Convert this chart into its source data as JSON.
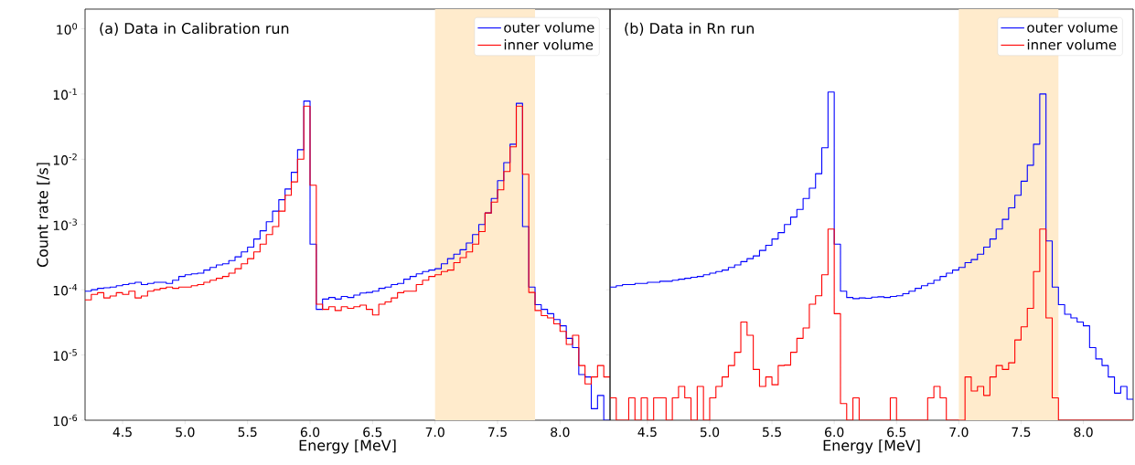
{
  "chart_data": [
    {
      "type": "histogram",
      "xlabel": "Energy [MeV]",
      "ylabel": "Count rate [/s]",
      "annotations": [
        "(a) Data in Calibration run"
      ],
      "log": true,
      "legend": "top right",
      "xlim": [
        4.2,
        8.4
      ],
      "ylim": [
        1e-06,
        2
      ],
      "xticks": [
        {
          "value": 4.5,
          "label": "4.5"
        },
        {
          "value": 5,
          "label": "5.0"
        },
        {
          "value": 5.5,
          "label": "5.5"
        },
        {
          "value": 6,
          "label": "6.0"
        },
        {
          "value": 6.5,
          "label": "6.5"
        },
        {
          "value": 7,
          "label": "7.0"
        },
        {
          "value": 7.5,
          "label": "7.5"
        },
        {
          "value": 8,
          "label": "8.0"
        }
      ],
      "yticks": [
        {
          "value": 1e-06,
          "label": "10$^{-6}$"
        },
        {
          "value": 1e-05,
          "label": "10$^{-5}$"
        },
        {
          "value": 0.0001,
          "label": "10$^{-4}$"
        },
        {
          "value": 0.001,
          "label": "10$^{-3}$"
        },
        {
          "value": 0.01,
          "label": "10$^{-2}$"
        },
        {
          "value": 0.1,
          "label": "10$^{-1}$"
        },
        {
          "value": 1,
          "label": "10$^{0}$"
        }
      ],
      "bands": [
        {
          "axis": "x",
          "from": 7.0,
          "to": 7.8,
          "color": "#ffebcc"
        }
      ],
      "bins": [
        4.2,
        4.25,
        4.3,
        4.35,
        4.4,
        4.45,
        4.5,
        4.55,
        4.6,
        4.65,
        4.7,
        4.75,
        4.8,
        4.85,
        4.9,
        4.95,
        5.0,
        5.05,
        5.1,
        5.15,
        5.2,
        5.25,
        5.3,
        5.35,
        5.4,
        5.45,
        5.5,
        5.55,
        5.6,
        5.65,
        5.7,
        5.75,
        5.8,
        5.85,
        5.9,
        5.95,
        6.0,
        6.05,
        6.1,
        6.15,
        6.2,
        6.25,
        6.3,
        6.35,
        6.4,
        6.45,
        6.5,
        6.55,
        6.6,
        6.65,
        6.7,
        6.75,
        6.8,
        6.85,
        6.9,
        6.95,
        7.0,
        7.05,
        7.1,
        7.15,
        7.2,
        7.25,
        7.3,
        7.35,
        7.4,
        7.45,
        7.5,
        7.55,
        7.6,
        7.65,
        7.7,
        7.75,
        7.8,
        7.85,
        7.9,
        7.95,
        8.0,
        8.05,
        8.1,
        8.15,
        8.2,
        8.25,
        8.3,
        8.35,
        8.4
      ],
      "series": [
        {
          "name": "outer volume",
          "color": "#0000ff",
          "values": [
            9.5e-05,
            0.0001,
            0.000105,
            0.000107,
            0.00011,
            0.000115,
            0.00012,
            0.000125,
            0.00013,
            0.00012,
            0.000125,
            0.00013,
            0.00013,
            0.000125,
            0.00014,
            0.00016,
            0.00017,
            0.000175,
            0.00018,
            0.0002,
            0.00022,
            0.00024,
            0.00025,
            0.00028,
            0.00032,
            0.00038,
            0.00045,
            0.0006,
            0.0008,
            0.0011,
            0.0016,
            0.0024,
            0.0035,
            0.0063,
            0.014,
            0.078,
            0.0005,
            5e-05,
            7.2e-05,
            7.6e-05,
            7.2e-05,
            7.9e-05,
            7.6e-05,
            8.3e-05,
            8.9e-05,
            9.1e-05,
            9.5e-05,
            0.000105,
            0.00011,
            0.00012,
            0.000125,
            0.000145,
            0.00016,
            0.000175,
            0.00019,
            0.0002,
            0.00021,
            0.00025,
            0.0003,
            0.00035,
            0.00041,
            0.00052,
            0.0007,
            0.001,
            0.0015,
            0.0025,
            0.0047,
            0.0089,
            0.017,
            0.072,
            0.00093,
            0.00011,
            5.9e-05,
            5e-05,
            4.3e-05,
            3.5e-05,
            2.8e-05,
            1.8e-05,
            1.3e-05,
            5e-06,
            4.6e-06,
            1.5e-06,
            2.4e-06,
            1e-06
          ]
        },
        {
          "name": "inner volume",
          "color": "#ff0000",
          "values": [
            7e-05,
            8.5e-05,
            9e-05,
            7.5e-05,
            8e-05,
            9e-05,
            8.5e-05,
            9.5e-05,
            7.5e-05,
            8e-05,
            9.5e-05,
            0.0001,
            0.000105,
            0.00011,
            0.000105,
            0.00011,
            0.00011,
            0.000115,
            0.00012,
            0.00013,
            0.00014,
            0.00015,
            0.00016,
            0.00018,
            0.00021,
            0.00025,
            0.0003,
            0.00038,
            0.0005,
            0.0007,
            0.00093,
            0.0016,
            0.0028,
            0.0045,
            0.01,
            0.065,
            0.004,
            6e-05,
            5e-05,
            5.5e-05,
            4.8e-05,
            5.5e-05,
            5.2e-05,
            5.5e-05,
            5.8e-05,
            5e-05,
            4.1e-05,
            6e-05,
            6.5e-05,
            7.5e-05,
            9e-05,
            9.5e-05,
            9.5e-05,
            0.00012,
            0.00014,
            0.00016,
            0.00017,
            0.00019,
            0.0002,
            0.00026,
            0.00031,
            0.00038,
            0.0005,
            0.00078,
            0.0015,
            0.0022,
            0.0034,
            0.0065,
            0.0155,
            0.065,
            0.0059,
            9.1e-05,
            4.8e-05,
            4e-05,
            3.7e-05,
            3e-05,
            2.3e-05,
            1.45e-05,
            2e-05,
            6.9e-06,
            3.6e-06,
            4.6e-06,
            6.9e-06,
            4.6e-06
          ]
        }
      ]
    },
    {
      "type": "histogram",
      "xlabel": "Energy [MeV]",
      "annotations": [
        "(b) Data in Rn run"
      ],
      "log": true,
      "legend": "top right",
      "tick_labels": "x",
      "xlim": [
        4.2,
        8.4
      ],
      "ylim": [
        1e-06,
        2
      ],
      "xticks": [
        {
          "value": 4.5,
          "label": "4.5"
        },
        {
          "value": 5,
          "label": "5.0"
        },
        {
          "value": 5.5,
          "label": "5.5"
        },
        {
          "value": 6,
          "label": "6.0"
        },
        {
          "value": 6.5,
          "label": "6.5"
        },
        {
          "value": 7,
          "label": "7.0"
        },
        {
          "value": 7.5,
          "label": "7.5"
        },
        {
          "value": 8,
          "label": "8.0"
        }
      ],
      "yticks": [
        {
          "value": 1e-06,
          "label": null
        },
        {
          "value": 1e-05,
          "label": null
        },
        {
          "value": 0.0001,
          "label": null
        },
        {
          "value": 0.001,
          "label": null
        },
        {
          "value": 0.01,
          "label": null
        },
        {
          "value": 0.1,
          "label": null
        },
        {
          "value": 1,
          "label": null
        }
      ],
      "bands": [
        {
          "axis": "x",
          "from": 7.0,
          "to": 7.8,
          "color": "#ffebcc"
        }
      ],
      "bins": [
        4.2,
        4.25,
        4.3,
        4.35,
        4.4,
        4.45,
        4.5,
        4.55,
        4.6,
        4.65,
        4.7,
        4.75,
        4.8,
        4.85,
        4.9,
        4.95,
        5.0,
        5.05,
        5.1,
        5.15,
        5.2,
        5.25,
        5.3,
        5.35,
        5.4,
        5.45,
        5.5,
        5.55,
        5.6,
        5.65,
        5.7,
        5.75,
        5.8,
        5.85,
        5.9,
        5.95,
        6.0,
        6.05,
        6.1,
        6.15,
        6.2,
        6.25,
        6.3,
        6.35,
        6.4,
        6.45,
        6.5,
        6.55,
        6.6,
        6.65,
        6.7,
        6.75,
        6.8,
        6.85,
        6.9,
        6.95,
        7.0,
        7.05,
        7.1,
        7.15,
        7.2,
        7.25,
        7.3,
        7.35,
        7.4,
        7.45,
        7.5,
        7.55,
        7.6,
        7.65,
        7.7,
        7.75,
        7.8,
        7.85,
        7.9,
        7.95,
        8.0,
        8.05,
        8.1,
        8.15,
        8.2,
        8.25,
        8.3,
        8.35,
        8.4
      ],
      "series": [
        {
          "name": "outer volume",
          "color": "#0000ff",
          "values": [
            0.00011,
            0.000115,
            0.00012,
            0.00012,
            0.000125,
            0.000125,
            0.00013,
            0.00013,
            0.000135,
            0.000135,
            0.00014,
            0.000145,
            0.00015,
            0.000155,
            0.00016,
            0.00017,
            0.00018,
            0.00019,
            0.0002,
            0.00022,
            0.00024,
            0.00027,
            0.0003,
            0.00033,
            0.0004,
            0.00048,
            0.0006,
            0.00075,
            0.001,
            0.0013,
            0.0017,
            0.0025,
            0.0036,
            0.006,
            0.015,
            0.107,
            0.0005,
            9.5e-05,
            7.6e-05,
            7.3e-05,
            7.5e-05,
            7.4e-05,
            7.7e-05,
            7.8e-05,
            7.6e-05,
            7.9e-05,
            8.1e-05,
            8.7e-05,
            9.5e-05,
            0.000105,
            0.000115,
            0.000125,
            0.00014,
            0.00016,
            0.00018,
            0.0002,
            0.00022,
            0.00026,
            0.00029,
            0.00035,
            0.00045,
            0.0006,
            0.00085,
            0.0012,
            0.0018,
            0.0028,
            0.0046,
            0.0081,
            0.017,
            0.1,
            0.00056,
            0.00011,
            5.9e-05,
            4.2e-05,
            3.7e-05,
            3.2e-05,
            2.8e-05,
            1.3e-05,
            8.7e-06,
            6.9e-06,
            4.6e-06,
            2.6e-06,
            3.3e-06,
            2.1e-06
          ]
        },
        {
          "name": "inner volume",
          "color": "#ff0000",
          "values": [
            2.2e-06,
            1e-06,
            1e-06,
            2.2e-06,
            1e-06,
            2.2e-06,
            1e-06,
            2.2e-06,
            2.2e-06,
            1e-06,
            2.2e-06,
            3.3e-06,
            2.2e-06,
            1e-06,
            3.3e-06,
            1e-06,
            2.2e-06,
            3.3e-06,
            4.6e-06,
            6.9e-06,
            1.1e-05,
            3.2e-05,
            2e-05,
            6e-06,
            3.3e-06,
            4.6e-06,
            3.5e-06,
            6.9e-06,
            7e-06,
            1.1e-05,
            1.8e-05,
            2.6e-05,
            6e-05,
            8.1e-05,
            0.00017,
            0.00085,
            4.3e-05,
            1.8e-06,
            1e-06,
            2.2e-06,
            1e-06,
            1e-06,
            1e-06,
            1e-06,
            1e-06,
            2.2e-06,
            1e-06,
            1e-06,
            1e-06,
            1e-06,
            1e-06,
            2.2e-06,
            3.3e-06,
            2.2e-06,
            1e-06,
            1e-06,
            1e-06,
            4.6e-06,
            2.8e-06,
            3.3e-06,
            2.4e-06,
            4.6e-06,
            6.9e-06,
            6e-06,
            7.6e-06,
            1.7e-05,
            2.7e-05,
            5.2e-05,
            0.00019,
            0.00085,
            3.7e-05,
            2.2e-06,
            1e-06,
            1e-06,
            1e-06,
            1e-06,
            1e-06,
            1e-06,
            1e-06,
            1e-06,
            1e-06,
            1e-06,
            1e-06,
            1e-06
          ]
        }
      ]
    }
  ]
}
